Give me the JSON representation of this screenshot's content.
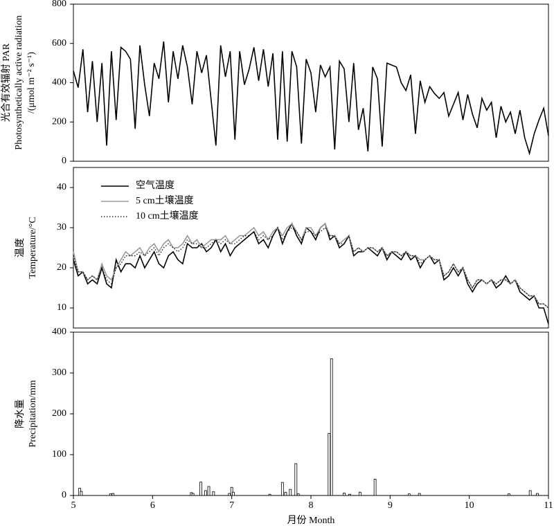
{
  "chart_data": [
    {
      "type": "line",
      "ylabel": [
        "光合有效辐射 PAR",
        "Photosynthetically active radiation",
        "/(μmol m⁻² s⁻¹)"
      ],
      "xlim": [
        5,
        11
      ],
      "ylim": [
        0,
        800
      ],
      "yticks": [
        0,
        200,
        400,
        600,
        800
      ],
      "x": [
        5.0,
        5.06,
        5.12,
        5.18,
        5.24,
        5.3,
        5.36,
        5.42,
        5.48,
        5.54,
        5.6,
        5.66,
        5.72,
        5.78,
        5.84,
        5.9,
        5.96,
        6.02,
        6.08,
        6.14,
        6.2,
        6.26,
        6.32,
        6.38,
        6.44,
        6.5,
        6.56,
        6.62,
        6.68,
        6.74,
        6.8,
        6.86,
        6.92,
        6.98,
        7.04,
        7.1,
        7.16,
        7.22,
        7.28,
        7.34,
        7.4,
        7.46,
        7.52,
        7.58,
        7.64,
        7.7,
        7.76,
        7.82,
        7.88,
        7.94,
        8.0,
        8.06,
        8.12,
        8.18,
        8.24,
        8.3,
        8.36,
        8.42,
        8.48,
        8.54,
        8.6,
        8.66,
        8.72,
        8.78,
        8.84,
        8.9,
        8.96,
        9.02,
        9.08,
        9.14,
        9.2,
        9.26,
        9.32,
        9.38,
        9.44,
        9.5,
        9.56,
        9.62,
        9.68,
        9.74,
        9.8,
        9.86,
        9.92,
        9.98,
        10.04,
        10.1,
        10.16,
        10.22,
        10.28,
        10.34,
        10.4,
        10.46,
        10.52,
        10.58,
        10.64,
        10.7,
        10.76,
        10.82,
        10.88,
        10.94,
        11.0
      ],
      "color": "#000000",
      "values": [
        460,
        375,
        570,
        250,
        510,
        200,
        500,
        80,
        560,
        210,
        580,
        560,
        520,
        165,
        590,
        390,
        230,
        500,
        420,
        610,
        300,
        560,
        420,
        590,
        480,
        290,
        560,
        450,
        540,
        310,
        80,
        590,
        430,
        560,
        110,
        560,
        390,
        470,
        580,
        410,
        570,
        380,
        550,
        110,
        560,
        100,
        560,
        480,
        90,
        520,
        450,
        250,
        490,
        430,
        480,
        60,
        510,
        470,
        200,
        500,
        160,
        270,
        50,
        480,
        420,
        75,
        500,
        490,
        480,
        400,
        360,
        440,
        140,
        410,
        300,
        380,
        345,
        320,
        350,
        230,
        290,
        350,
        210,
        340,
        240,
        170,
        320,
        260,
        300,
        120,
        280,
        200,
        250,
        140,
        260,
        120,
        40,
        140,
        210,
        270,
        130
      ]
    },
    {
      "type": "line",
      "ylabel": [
        "温度",
        "Temperature/°C"
      ],
      "xlim": [
        5,
        11
      ],
      "ylim": [
        5,
        45
      ],
      "yticks": [
        10,
        20,
        30,
        40
      ],
      "legend": "upper left",
      "x": [
        5.0,
        5.06,
        5.12,
        5.18,
        5.24,
        5.3,
        5.36,
        5.42,
        5.48,
        5.54,
        5.6,
        5.66,
        5.72,
        5.78,
        5.84,
        5.9,
        5.96,
        6.02,
        6.08,
        6.14,
        6.2,
        6.26,
        6.32,
        6.38,
        6.44,
        6.5,
        6.56,
        6.62,
        6.68,
        6.74,
        6.8,
        6.86,
        6.92,
        6.98,
        7.04,
        7.1,
        7.16,
        7.22,
        7.28,
        7.34,
        7.4,
        7.46,
        7.52,
        7.58,
        7.64,
        7.7,
        7.76,
        7.82,
        7.88,
        7.94,
        8.0,
        8.06,
        8.12,
        8.18,
        8.24,
        8.3,
        8.36,
        8.42,
        8.48,
        8.54,
        8.6,
        8.66,
        8.72,
        8.78,
        8.84,
        8.9,
        8.96,
        9.02,
        9.08,
        9.14,
        9.2,
        9.26,
        9.32,
        9.38,
        9.44,
        9.5,
        9.56,
        9.62,
        9.68,
        9.74,
        9.8,
        9.86,
        9.92,
        9.98,
        10.04,
        10.1,
        10.16,
        10.22,
        10.28,
        10.34,
        10.4,
        10.46,
        10.52,
        10.58,
        10.64,
        10.7,
        10.76,
        10.82,
        10.88,
        10.94,
        11.0
      ],
      "series": [
        {
          "name": "空气温度",
          "color": "#000000",
          "linestyle": "solid",
          "values": [
            22,
            18,
            19,
            16,
            17,
            16,
            20,
            16,
            15,
            22,
            19,
            21,
            21,
            20,
            23,
            20,
            22,
            24,
            21,
            20,
            23,
            24,
            22,
            21,
            26,
            25,
            25,
            26,
            24,
            25,
            27,
            24,
            26,
            23,
            25,
            26,
            27,
            28,
            29,
            26,
            27,
            25,
            28,
            30,
            26,
            29,
            31,
            28,
            26,
            30,
            29,
            27,
            30,
            31,
            27,
            28,
            25,
            26,
            28,
            23,
            24,
            24,
            25,
            24,
            23,
            25,
            22,
            24,
            23,
            22,
            24,
            22,
            23,
            20,
            22,
            23,
            21,
            22,
            17,
            18,
            20,
            18,
            20,
            16,
            14,
            16,
            17,
            16,
            17,
            15,
            16,
            18,
            16,
            17,
            14,
            13,
            12,
            13,
            10,
            10,
            6
          ]
        },
        {
          "name": "5 cm土壤温度",
          "color": "#999999",
          "linestyle": "solid",
          "values": [
            24,
            19,
            19,
            17,
            18,
            17,
            21,
            18,
            17,
            20,
            22,
            24,
            23,
            24,
            25,
            23,
            25,
            26,
            24,
            26,
            27,
            25,
            25,
            26,
            28,
            26,
            27,
            25,
            26,
            27,
            27,
            27,
            28,
            26,
            27,
            28,
            28,
            29,
            30,
            28,
            29,
            27,
            29,
            30,
            28,
            30,
            31,
            29,
            27,
            30,
            30,
            28,
            30,
            31,
            28,
            28,
            26,
            27,
            28,
            24,
            25,
            24,
            25,
            25,
            24,
            25,
            23,
            24,
            24,
            23,
            24,
            23,
            23,
            22,
            22,
            23,
            22,
            22,
            18,
            19,
            21,
            19,
            20,
            17,
            15,
            17,
            17,
            16,
            17,
            16,
            17,
            17,
            16,
            17,
            15,
            14,
            13,
            13,
            11,
            11,
            10
          ]
        },
        {
          "name": "10 cm土壤温度",
          "color": "#000000",
          "linestyle": "dotted",
          "values": [
            23,
            19,
            19,
            17,
            18,
            17,
            20,
            17,
            16,
            20,
            21,
            23,
            23,
            23,
            24,
            23,
            24,
            25,
            23,
            25,
            26,
            25,
            24,
            25,
            27,
            26,
            26,
            25,
            25,
            26,
            27,
            26,
            27,
            26,
            26,
            27,
            28,
            28,
            29,
            27,
            28,
            27,
            28,
            30,
            27,
            29,
            30,
            29,
            27,
            29,
            29,
            28,
            29,
            30,
            28,
            28,
            26,
            26,
            28,
            24,
            25,
            24,
            25,
            25,
            24,
            25,
            23,
            24,
            24,
            23,
            24,
            23,
            23,
            21,
            22,
            23,
            22,
            22,
            18,
            19,
            21,
            19,
            20,
            17,
            15,
            17,
            17,
            16,
            17,
            16,
            17,
            17,
            16,
            17,
            15,
            14,
            13,
            13,
            11,
            11,
            10
          ]
        }
      ]
    },
    {
      "type": "bar",
      "ylabel": [
        "降水量",
        "Precipitation/mm"
      ],
      "xlabel": "月份 Month",
      "xlim": [
        5,
        11
      ],
      "xticks": [
        5,
        6,
        7,
        8,
        9,
        10,
        11
      ],
      "ylim": [
        0,
        400
      ],
      "yticks": [
        0,
        100,
        200,
        300,
        400
      ],
      "color": "#ffffff",
      "x": [
        5.08,
        5.1,
        5.47,
        5.5,
        6.49,
        6.51,
        6.61,
        6.67,
        6.71,
        6.77,
        6.97,
        7.0,
        7.02,
        7.48,
        7.64,
        7.68,
        7.74,
        7.81,
        7.84,
        8.23,
        8.26,
        8.42,
        8.49,
        8.62,
        8.81,
        9.24,
        9.37,
        10.5,
        10.77,
        10.86
      ],
      "values": [
        18,
        10,
        4,
        5,
        7,
        5,
        33,
        12,
        22,
        9,
        5,
        20,
        8,
        3,
        32,
        8,
        15,
        78,
        4,
        152,
        335,
        6,
        3,
        8,
        40,
        4,
        5,
        4,
        12,
        5
      ]
    }
  ]
}
